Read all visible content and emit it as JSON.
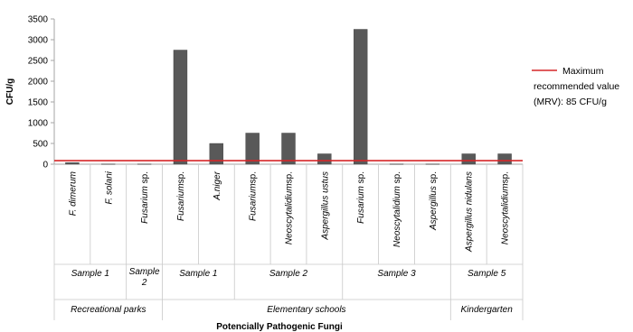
{
  "chart_data": {
    "type": "bar",
    "title": "",
    "ylabel": "CFU/g",
    "xlabel": "Potencially Pathogenic Fungi",
    "ylim": [
      0,
      3500
    ],
    "yticks": [
      0,
      500,
      1000,
      1500,
      2000,
      2500,
      3000,
      3500
    ],
    "ytick_labels": [
      "0",
      "500",
      "1000",
      "1500",
      "2000",
      "2500",
      "3000",
      "3500"
    ],
    "grid": false,
    "categories": [
      {
        "pre": "F. dimerum",
        "post": ""
      },
      {
        "pre": "F. solani",
        "post": ""
      },
      {
        "pre": "Fusarium",
        "post": " sp."
      },
      {
        "pre": "Fusarium",
        "post": "sp."
      },
      {
        "pre": "A.niger",
        "post": ""
      },
      {
        "pre": "Fusarium",
        "post": "sp."
      },
      {
        "pre": "Neoscytalidium",
        "post": "sp."
      },
      {
        "pre": "Aspergillus ustus",
        "post": ""
      },
      {
        "pre": "Fusarium",
        "post": " sp."
      },
      {
        "pre": "Neoscytalidium",
        "post": " sp."
      },
      {
        "pre": "Aspergillus",
        "post": " sp."
      },
      {
        "pre": "Aspergillus nidulans",
        "post": ""
      },
      {
        "pre": "Neoscytalidium",
        "post": "sp."
      }
    ],
    "values": [
      40,
      5,
      5,
      2750,
      500,
      750,
      750,
      250,
      3250,
      5,
      5,
      250,
      250
    ],
    "bar_color": "#595959",
    "samples": [
      {
        "lines": [
          "Sample 1"
        ],
        "span": [
          0,
          1
        ]
      },
      {
        "lines": [
          "Sample",
          "2"
        ],
        "span": [
          2,
          2
        ]
      },
      {
        "lines": [
          "Sample 1"
        ],
        "span": [
          3,
          4
        ]
      },
      {
        "lines": [
          "Sample 2"
        ],
        "span": [
          5,
          7
        ]
      },
      {
        "lines": [
          "Sample 3"
        ],
        "span": [
          8,
          10
        ]
      },
      {
        "lines": [
          "Sample 5"
        ],
        "span": [
          11,
          12
        ]
      }
    ],
    "locations": [
      {
        "label": "Recreational parks",
        "span": [
          0,
          2
        ]
      },
      {
        "label": "Elementary schools",
        "span": [
          3,
          10
        ]
      },
      {
        "label": "Kindergarten",
        "span": [
          11,
          12
        ]
      }
    ],
    "reference_line": {
      "value": 85,
      "color": "#d62728"
    },
    "legend": {
      "position": "right",
      "lines": [
        "Maximum",
        "recommended value",
        "(MRV): 85 CFU/g"
      ]
    }
  }
}
